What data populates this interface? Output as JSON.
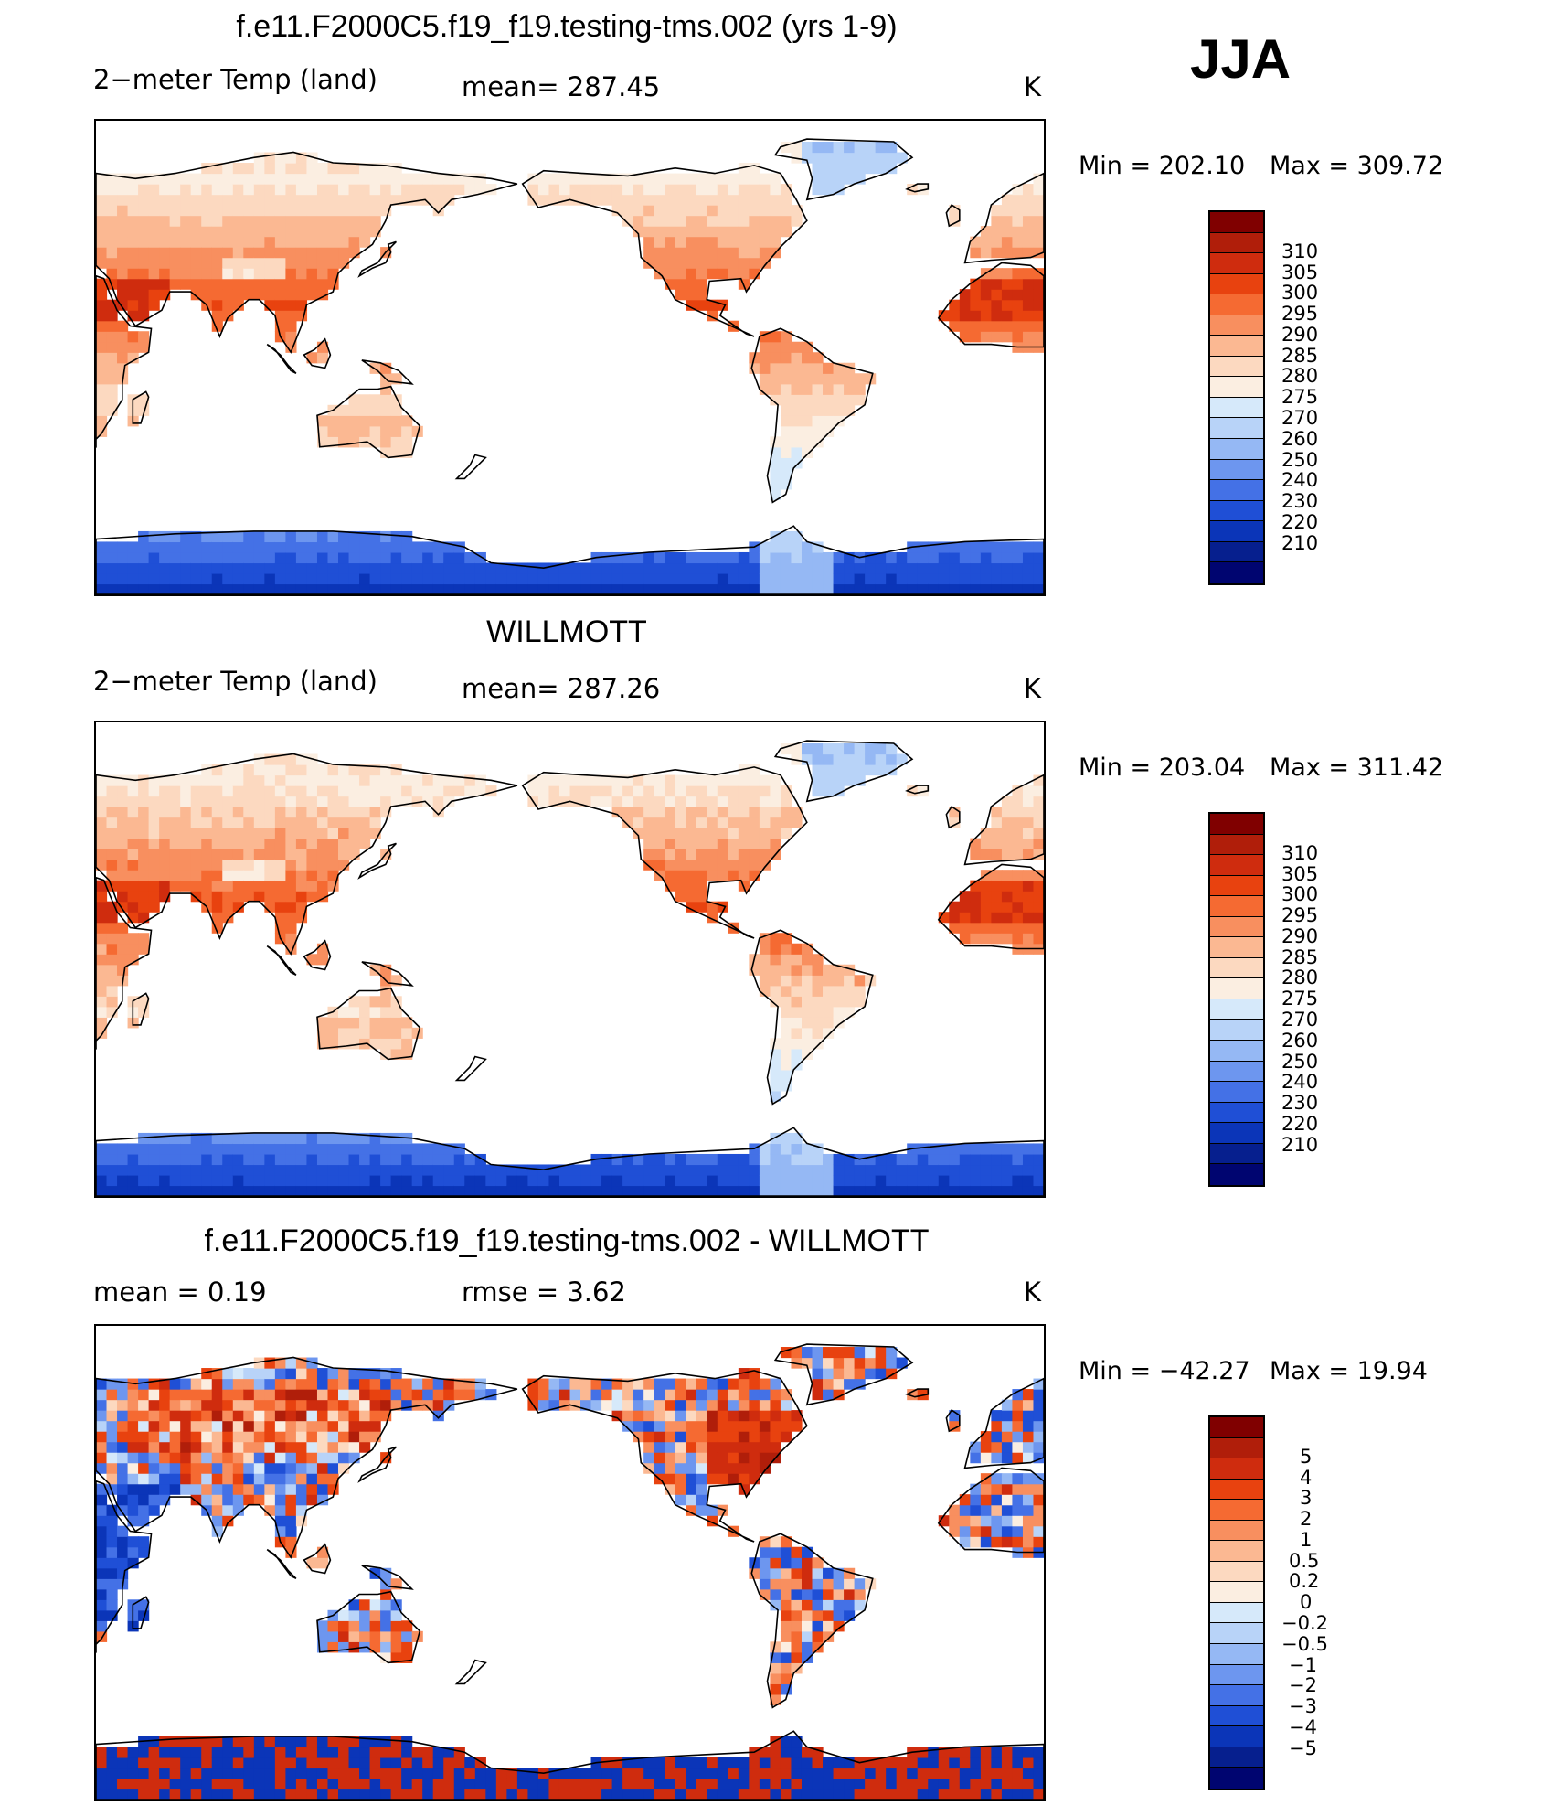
{
  "season": "JJA",
  "chart_data": [
    {
      "type": "heatmap",
      "title": "f.e11.F2000C5.f19_f19.testing-tms.002 (yrs 1-9)",
      "variable": "2−meter Temp (land)",
      "stat_text": "mean=  287.45",
      "units": "K",
      "min_label": "Min  =  202.10",
      "max_label": "Max  =  309.72",
      "min": 202.1,
      "max": 309.72,
      "mean": 287.45,
      "levels": [
        "310",
        "305",
        "300",
        "295",
        "290",
        "285",
        "280",
        "275",
        "270",
        "260",
        "250",
        "240",
        "230",
        "220",
        "210"
      ],
      "colors": [
        "#800000",
        "#b01e0a",
        "#cf2c0e",
        "#e8420f",
        "#f56a32",
        "#f88f5f",
        "#fbb892",
        "#fcd9c0",
        "#fbeee1",
        "#d6e9fa",
        "#b8d3f8",
        "#95b8f4",
        "#6d96ef",
        "#4471e6",
        "#1f4fd6",
        "#0b35b8",
        "#061f8e",
        "#000570"
      ],
      "model": "temp"
    },
    {
      "type": "heatmap",
      "title": "WILLMOTT",
      "variable": "2−meter Temp (land)",
      "stat_text": "mean=  287.26",
      "units": "K",
      "min_label": "Min  =  203.04",
      "max_label": "Max  =  311.42",
      "min": 203.04,
      "max": 311.42,
      "mean": 287.26,
      "levels": [
        "310",
        "305",
        "300",
        "295",
        "290",
        "285",
        "280",
        "275",
        "270",
        "260",
        "250",
        "240",
        "230",
        "220",
        "210"
      ],
      "colors": [
        "#800000",
        "#b01e0a",
        "#cf2c0e",
        "#e8420f",
        "#f56a32",
        "#f88f5f",
        "#fbb892",
        "#fcd9c0",
        "#fbeee1",
        "#d6e9fa",
        "#b8d3f8",
        "#95b8f4",
        "#6d96ef",
        "#4471e6",
        "#1f4fd6",
        "#0b35b8",
        "#061f8e",
        "#000570"
      ],
      "model": "obs"
    },
    {
      "type": "heatmap",
      "title": "f.e11.F2000C5.f19_f19.testing-tms.002 - WILLMOTT",
      "variable": "mean =      0.19",
      "stat_text": "rmse =      3.62",
      "units": "K",
      "min_label": "Min  =  −42.27",
      "max_label": "Max  =     19.94",
      "min": -42.27,
      "max": 19.94,
      "mean": 0.19,
      "rmse": 3.62,
      "levels": [
        "5",
        "4",
        "3",
        "2",
        "1",
        "0.5",
        "0.2",
        "0",
        "−0.2",
        "−0.5",
        "−1",
        "−2",
        "−3",
        "−4",
        "−5"
      ],
      "colors": [
        "#800000",
        "#b01e0a",
        "#cf2c0e",
        "#e8420f",
        "#f56a32",
        "#f88f5f",
        "#fbb892",
        "#fcd9c0",
        "#fbeee1",
        "#d6e9fa",
        "#b8d3f8",
        "#95b8f4",
        "#6d96ef",
        "#4471e6",
        "#1f4fd6",
        "#0b35b8",
        "#061f8e",
        "#000570"
      ],
      "model": "diff"
    }
  ]
}
